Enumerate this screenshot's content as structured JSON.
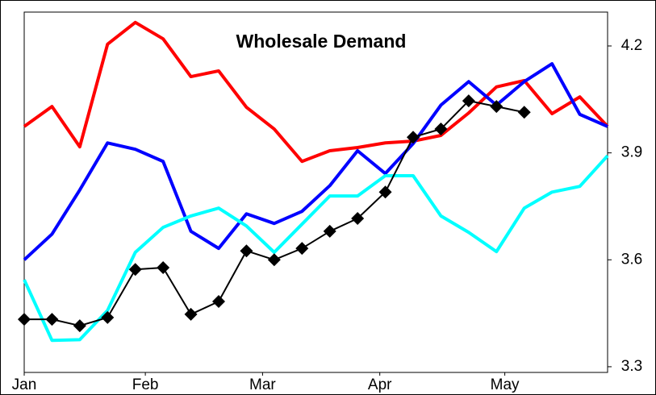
{
  "chart_data": {
    "type": "line",
    "title": "Wholesale Demand",
    "x": [
      0,
      1,
      2,
      3,
      4,
      5,
      6,
      7,
      8,
      9,
      10,
      11,
      12,
      13,
      14,
      15,
      16,
      17,
      18,
      19,
      20,
      21
    ],
    "xlim": [
      0,
      21
    ],
    "xticks": [
      {
        "value": 0,
        "label": "Jan"
      },
      {
        "value": 4.36,
        "label": "Feb"
      },
      {
        "value": 8.58,
        "label": "Mar"
      },
      {
        "value": 12.8,
        "label": "Apr"
      },
      {
        "value": 17.3,
        "label": "May"
      }
    ],
    "ylim": [
      3.284,
      4.295
    ],
    "yticks": [
      3.3,
      3.6,
      3.9,
      4.2
    ],
    "y_axis_side": "right",
    "series": [
      {
        "color": "#ff0000",
        "width": 4,
        "values": [
          3.974,
          4.03,
          3.917,
          4.205,
          4.266,
          4.22,
          4.114,
          4.13,
          4.028,
          3.967,
          3.876,
          3.906,
          3.915,
          3.928,
          3.933,
          3.949,
          4.012,
          4.085,
          4.103,
          4.01,
          4.057,
          3.974
        ]
      },
      {
        "color": "#0000ff",
        "width": 4,
        "values": [
          3.6,
          3.672,
          3.796,
          3.928,
          3.91,
          3.876,
          3.68,
          3.632,
          3.729,
          3.702,
          3.736,
          3.808,
          3.906,
          3.842,
          3.926,
          4.034,
          4.1,
          4.034,
          4.1,
          4.15,
          4.008,
          3.974
        ]
      },
      {
        "color": "#00ffff",
        "width": 4,
        "values": [
          3.544,
          3.374,
          3.376,
          3.458,
          3.621,
          3.691,
          3.723,
          3.745,
          3.695,
          3.621,
          3.7,
          3.779,
          3.779,
          3.836,
          3.836,
          3.723,
          3.677,
          3.623,
          3.745,
          3.79,
          3.806,
          3.892
        ]
      },
      {
        "color": "#000000",
        "width": 2,
        "marker": "diamond",
        "values": [
          3.433,
          3.433,
          3.415,
          3.438,
          3.573,
          3.578,
          3.447,
          3.483,
          3.625,
          3.6,
          3.632,
          3.68,
          3.716,
          3.79,
          3.944,
          3.967,
          4.046,
          4.03,
          4.014,
          null,
          null,
          null
        ]
      }
    ]
  }
}
